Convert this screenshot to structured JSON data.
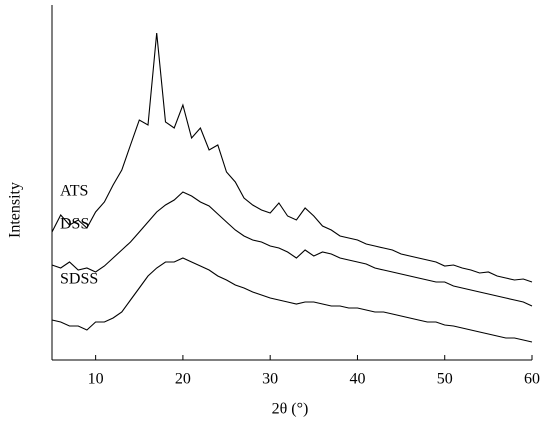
{
  "chart_data": {
    "type": "line",
    "xlabel": "2θ (°)",
    "ylabel": "Intensity",
    "x": [
      5,
      6,
      7,
      8,
      9,
      10,
      11,
      12,
      13,
      14,
      15,
      16,
      17,
      18,
      19,
      20,
      21,
      22,
      23,
      24,
      25,
      26,
      27,
      28,
      29,
      30,
      31,
      32,
      33,
      34,
      35,
      36,
      37,
      38,
      39,
      40,
      41,
      42,
      43,
      44,
      45,
      46,
      47,
      48,
      49,
      50,
      51,
      52,
      53,
      54,
      55,
      56,
      57,
      58,
      59,
      60
    ],
    "xlim": [
      5,
      60
    ],
    "xticks": [
      10,
      20,
      30,
      40,
      50,
      60
    ],
    "ylim": [
      0,
      355
    ],
    "color": "#000000",
    "series": [
      {
        "name": "ATS",
        "values": [
          128,
          145,
          135,
          140,
          132,
          148,
          158,
          175,
          190,
          215,
          240,
          235,
          327,
          238,
          232,
          255,
          222,
          232,
          210,
          215,
          188,
          178,
          162,
          155,
          150,
          147,
          157,
          144,
          140,
          152,
          144,
          134,
          130,
          124,
          122,
          120,
          116,
          114,
          112,
          110,
          106,
          104,
          102,
          100,
          98,
          94,
          95,
          92,
          90,
          87,
          88,
          84,
          82,
          80,
          81,
          78
        ]
      },
      {
        "name": "DSS",
        "values": [
          95,
          92,
          98,
          90,
          92,
          88,
          94,
          102,
          110,
          118,
          128,
          138,
          148,
          155,
          160,
          168,
          164,
          158,
          154,
          146,
          138,
          130,
          124,
          120,
          118,
          114,
          112,
          108,
          102,
          110,
          104,
          108,
          106,
          102,
          100,
          98,
          96,
          92,
          90,
          88,
          86,
          84,
          82,
          80,
          78,
          78,
          74,
          72,
          70,
          68,
          66,
          64,
          62,
          60,
          58,
          54
        ]
      },
      {
        "name": "SDSS",
        "values": [
          40,
          38,
          34,
          34,
          30,
          38,
          38,
          42,
          48,
          60,
          72,
          84,
          92,
          98,
          98,
          102,
          98,
          94,
          90,
          84,
          80,
          75,
          72,
          68,
          65,
          62,
          60,
          58,
          56,
          58,
          58,
          56,
          54,
          54,
          52,
          52,
          50,
          48,
          48,
          46,
          44,
          42,
          40,
          38,
          38,
          35,
          34,
          32,
          30,
          28,
          26,
          24,
          22,
          22,
          20,
          18
        ]
      }
    ]
  }
}
